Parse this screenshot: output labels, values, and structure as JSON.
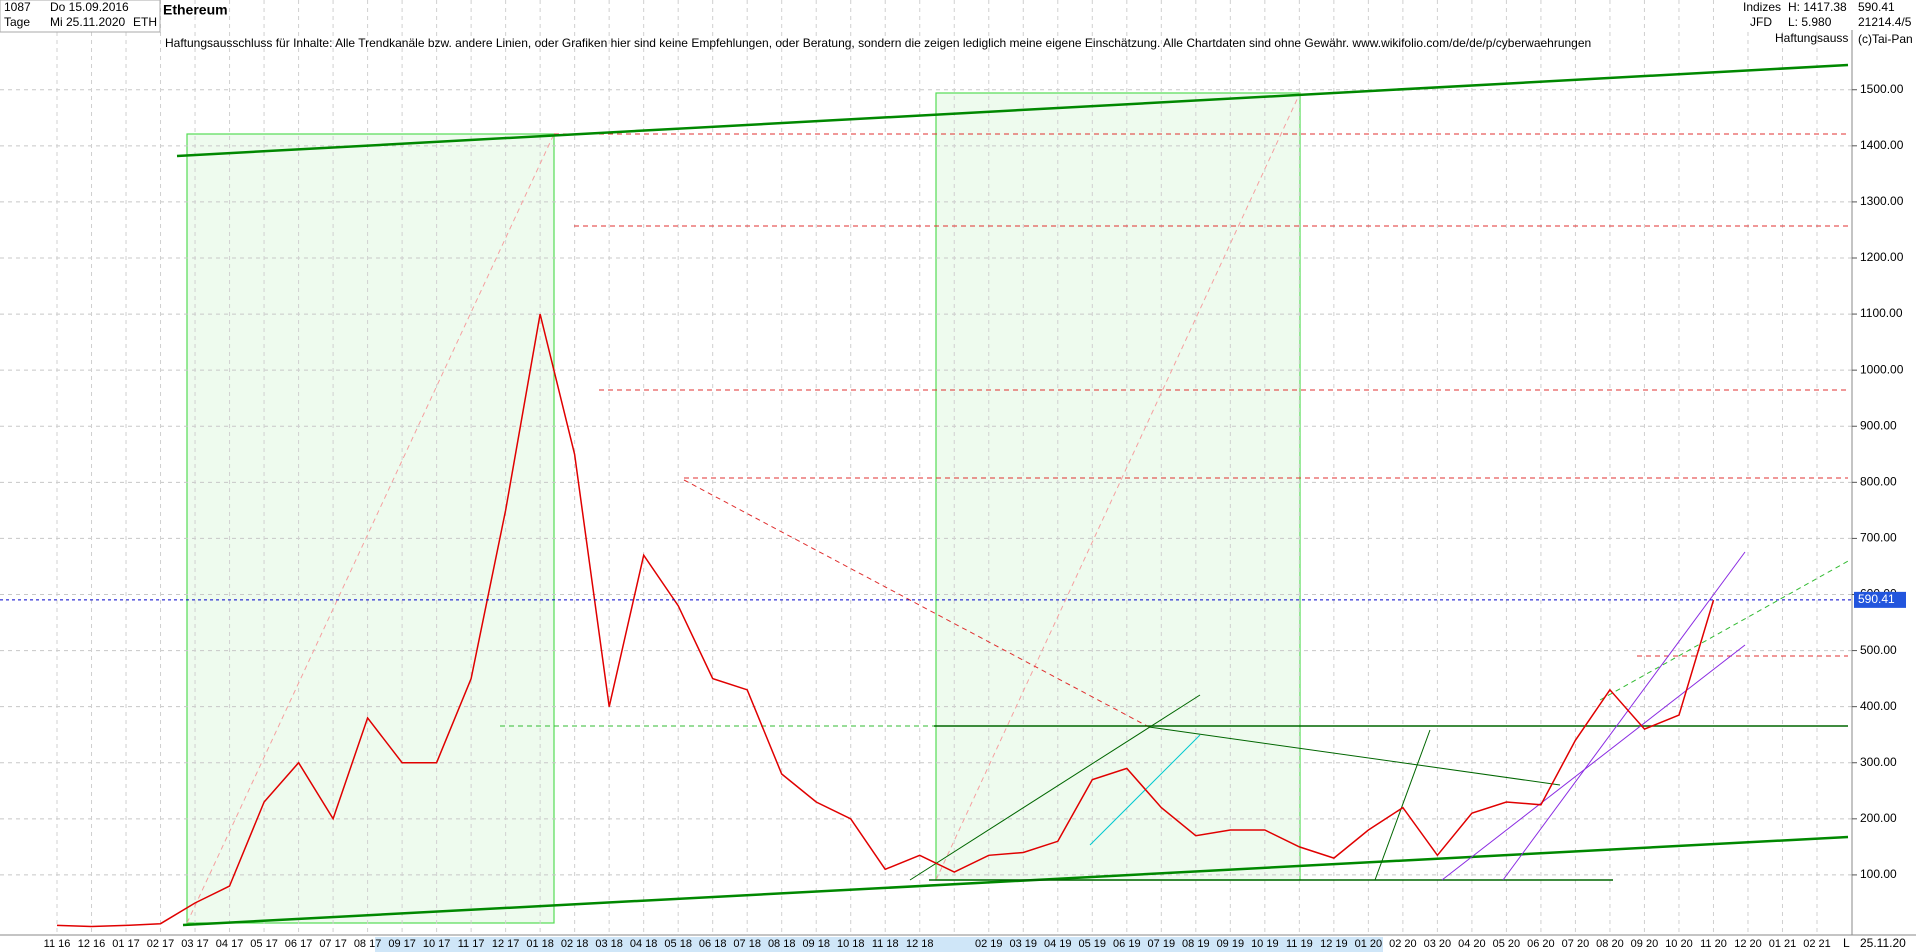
{
  "header": {
    "bars": "1087",
    "start_date": "Do 15.09.2016",
    "period": "Tage",
    "end_date": "Mi 25.11.2020",
    "symbol": "ETH",
    "disclaimer": "Haftungsausschluss für Inhalte: Alle Trendkanäle bzw. andere Linien, oder Grafiken hier sind keine Empfehlungen, oder Beratung, sondern die zeigen lediglich meine eigene Einschätzung. Alle Chartdaten sind ohne Gewähr.  www.wikifolio.com/de/de/p/cyberwaehrungen",
    "group": "Indizes",
    "broker": "JFD",
    "high": "H: 1417.38",
    "low": "L: 5.980",
    "volume": "21214.4/5",
    "note": "Haftungsauss",
    "copyright": "(c)Tai-Pan",
    "scale_mode": "L",
    "last_date": "25.11.20"
  },
  "chart_data": {
    "type": "line",
    "title": "Ethereum",
    "categories": [
      "11 16",
      "12 16",
      "01 17",
      "02 17",
      "03 17",
      "04 17",
      "05 17",
      "06 17",
      "07 17",
      "08 17",
      "09 17",
      "10 17",
      "11 17",
      "12 17",
      "01 18",
      "02 18",
      "03 18",
      "04 18",
      "05 18",
      "06 18",
      "07 18",
      "08 18",
      "09 18",
      "10 18",
      "11 18",
      "12 18",
      null,
      "02 19",
      "03 19",
      "04 19",
      "05 19",
      "06 19",
      "07 19",
      "08 19",
      "09 19",
      "10 19",
      "11 19",
      "12 19",
      "01 20",
      "02 20",
      "03 20",
      "04 20",
      "05 20",
      "06 20",
      "07 20",
      "08 20",
      "09 20",
      "10 20",
      "11 20",
      "12 20",
      "01 21",
      "02 21"
    ],
    "series": [
      {
        "name": "ETH",
        "color": "#e00000",
        "values": [
          10,
          8,
          10,
          13,
          50,
          80,
          230,
          300,
          200,
          380,
          300,
          300,
          450,
          750,
          1100,
          850,
          400,
          670,
          580,
          450,
          430,
          280,
          230,
          200,
          110,
          135,
          105,
          135,
          140,
          160,
          270,
          290,
          220,
          170,
          180,
          180,
          150,
          130,
          180,
          220,
          135,
          210,
          230,
          225,
          340,
          430,
          360,
          385,
          590,
          null,
          null,
          null
        ]
      }
    ],
    "price_line": 590.41,
    "ylim": [
      0,
      1660
    ],
    "yticks": [
      {
        "value": 100,
        "label": "100.00"
      },
      {
        "value": 200,
        "label": "200.00"
      },
      {
        "value": 300,
        "label": "300.00"
      },
      {
        "value": 400,
        "label": "400.00"
      },
      {
        "value": 500,
        "label": "500.00"
      },
      {
        "value": 600,
        "label": "600.00"
      },
      {
        "value": 700,
        "label": "700.00"
      },
      {
        "value": 800,
        "label": "800.00"
      },
      {
        "value": 900,
        "label": "900.00"
      },
      {
        "value": 1000,
        "label": "1000.00"
      },
      {
        "value": 1100,
        "label": "1100.00"
      },
      {
        "value": 1200,
        "label": "1200.00"
      },
      {
        "value": 1300,
        "label": "1300.00"
      },
      {
        "value": 1400,
        "label": "1400.00"
      },
      {
        "value": 1500,
        "label": "1500.00"
      }
    ],
    "grid": true
  }
}
